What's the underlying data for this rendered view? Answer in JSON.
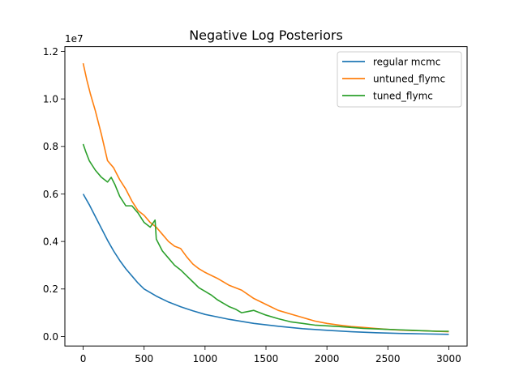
{
  "chart_data": {
    "type": "line",
    "title": "Negative Log Posteriors",
    "xlabel": "",
    "ylabel": "",
    "y_scale_label": "1e7",
    "xlim": [
      -150,
      3150
    ],
    "ylim": [
      -0.4,
      12.2
    ],
    "x_ticks": [
      0,
      500,
      1000,
      1500,
      2000,
      2500,
      3000
    ],
    "y_ticks": [
      0.0,
      0.2,
      0.4,
      0.6,
      0.8,
      1.0,
      1.2
    ],
    "y_tick_values": [
      0,
      2,
      4,
      6,
      8,
      10,
      12
    ],
    "x_tick_labels": [
      "0",
      "500",
      "1000",
      "1500",
      "2000",
      "2500",
      "3000"
    ],
    "y_tick_labels": [
      "0.0",
      "0.2",
      "0.4",
      "0.6",
      "0.8",
      "1.0",
      "1.2"
    ],
    "grid": false,
    "legend_position": "top-right",
    "series": [
      {
        "name": "regular mcmc",
        "color": "#1f77b4",
        "x": [
          0,
          50,
          100,
          150,
          200,
          250,
          300,
          350,
          400,
          450,
          500,
          600,
          700,
          800,
          900,
          1000,
          1200,
          1400,
          1600,
          1800,
          2000,
          2200,
          2400,
          2600,
          2800,
          3000
        ],
        "y": [
          6.0,
          5.55,
          5.05,
          4.55,
          4.05,
          3.6,
          3.2,
          2.85,
          2.55,
          2.25,
          2.0,
          1.7,
          1.45,
          1.25,
          1.08,
          0.93,
          0.72,
          0.55,
          0.43,
          0.33,
          0.26,
          0.2,
          0.16,
          0.13,
          0.11,
          0.09
        ]
      },
      {
        "name": "untuned_flymc",
        "color": "#ff7f0e",
        "x": [
          0,
          30,
          60,
          100,
          150,
          200,
          250,
          300,
          350,
          400,
          450,
          500,
          550,
          600,
          650,
          700,
          750,
          800,
          850,
          900,
          950,
          1000,
          1100,
          1200,
          1300,
          1400,
          1500,
          1600,
          1700,
          1800,
          1900,
          2000,
          2100,
          2200,
          2300,
          2400,
          2500,
          2600,
          2700,
          2800,
          3000
        ],
        "y": [
          11.5,
          10.8,
          10.2,
          9.5,
          8.5,
          7.4,
          7.1,
          6.6,
          6.2,
          5.7,
          5.3,
          5.1,
          4.8,
          4.6,
          4.3,
          4.0,
          3.8,
          3.7,
          3.35,
          3.05,
          2.85,
          2.7,
          2.45,
          2.15,
          1.95,
          1.6,
          1.35,
          1.1,
          0.95,
          0.8,
          0.65,
          0.55,
          0.48,
          0.42,
          0.38,
          0.34,
          0.3,
          0.27,
          0.25,
          0.24,
          0.2
        ]
      },
      {
        "name": "tuned_flymc",
        "color": "#2ca02c",
        "x": [
          0,
          20,
          50,
          100,
          150,
          200,
          230,
          260,
          300,
          350,
          400,
          450,
          500,
          550,
          590,
          600,
          650,
          700,
          750,
          800,
          850,
          900,
          950,
          1000,
          1050,
          1100,
          1150,
          1200,
          1250,
          1300,
          1350,
          1400,
          1500,
          1600,
          1700,
          1800,
          1900,
          2000,
          2100,
          2200,
          2300,
          2400,
          2500,
          2600,
          2700,
          2800,
          2900,
          3000
        ],
        "y": [
          8.1,
          7.8,
          7.4,
          7.0,
          6.7,
          6.5,
          6.7,
          6.4,
          5.9,
          5.5,
          5.5,
          5.2,
          4.8,
          4.6,
          4.9,
          4.1,
          3.6,
          3.3,
          3.0,
          2.8,
          2.55,
          2.3,
          2.05,
          1.9,
          1.75,
          1.55,
          1.4,
          1.25,
          1.15,
          1.0,
          1.05,
          1.1,
          0.9,
          0.75,
          0.62,
          0.55,
          0.48,
          0.45,
          0.42,
          0.38,
          0.34,
          0.32,
          0.3,
          0.28,
          0.26,
          0.24,
          0.22,
          0.22
        ]
      }
    ]
  }
}
